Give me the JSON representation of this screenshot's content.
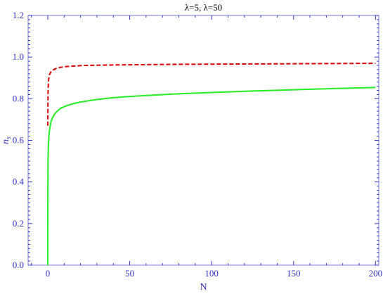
{
  "chart_data": {
    "type": "line",
    "title": "λ=5, λ=50",
    "xlabel": "N",
    "ylabel": "n",
    "ylabel_sub": "s",
    "xlim": [
      -12,
      202
    ],
    "ylim": [
      0.0,
      1.2
    ],
    "x_ticks": [
      0,
      50,
      100,
      150,
      200
    ],
    "y_ticks": [
      0.0,
      0.2,
      0.4,
      0.6,
      0.8,
      1.0,
      1.2
    ],
    "x_tick_labels": [
      "0",
      "50",
      "100",
      "150",
      "200"
    ],
    "y_tick_labels": [
      "0.0",
      "0.2",
      "0.4",
      "0.6",
      "0.8",
      "1.0",
      "1.2"
    ],
    "grid": false,
    "axis_color": "#3333cc",
    "series": [
      {
        "color": "#dd0000",
        "style": "dashed",
        "x": [
          0,
          0.2,
          0.5,
          1,
          2,
          3,
          5,
          8,
          12,
          20,
          30,
          50,
          75,
          100,
          125,
          150,
          175,
          200
        ],
        "y": [
          0.67,
          0.84,
          0.89,
          0.915,
          0.93,
          0.937,
          0.945,
          0.951,
          0.955,
          0.959,
          0.961,
          0.963,
          0.965,
          0.966,
          0.967,
          0.968,
          0.969,
          0.97
        ]
      },
      {
        "color": "#22ee22",
        "style": "solid",
        "x": [
          0,
          0.05,
          0.1,
          0.2,
          0.4,
          0.7,
          1,
          1.5,
          2,
          3,
          4,
          6,
          8,
          12,
          16,
          20,
          30,
          40,
          50,
          75,
          100,
          125,
          150,
          175,
          200
        ],
        "y": [
          0.0,
          0.3,
          0.42,
          0.52,
          0.58,
          0.62,
          0.645,
          0.67,
          0.69,
          0.71,
          0.725,
          0.742,
          0.755,
          0.768,
          0.777,
          0.784,
          0.796,
          0.805,
          0.811,
          0.822,
          0.83,
          0.837,
          0.843,
          0.849,
          0.854
        ]
      }
    ]
  }
}
